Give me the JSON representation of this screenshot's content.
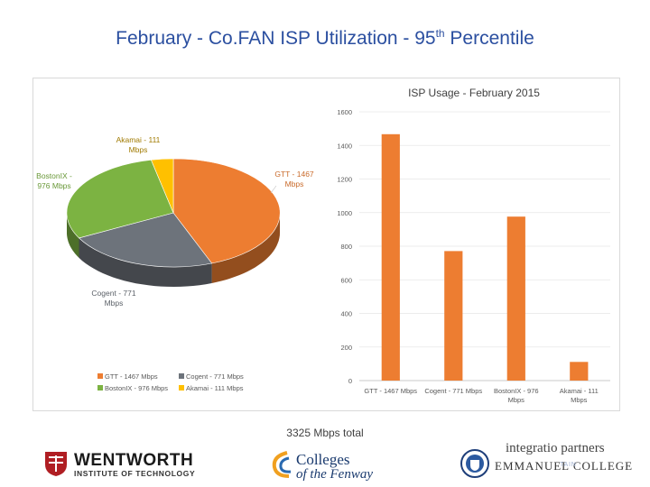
{
  "slide": {
    "title_main": "February - Co.FAN ISP Utilization - 95",
    "title_sup": "th",
    "title_end": " Percentile",
    "total": "3325 Mbps total"
  },
  "chart_data": [
    {
      "type": "pie",
      "title": "",
      "slices": [
        {
          "name": "GTT - 1467 Mbps",
          "value": 1467,
          "color": "#ed7d31",
          "label_lines": [
            "GTT - 1467",
            "Mbps"
          ]
        },
        {
          "name": "Cogent - 771 Mbps",
          "value": 771,
          "color": "#6d737b",
          "label_lines": [
            "Cogent - 771",
            "Mbps"
          ]
        },
        {
          "name": "BostonIX - 976 Mbps",
          "value": 976,
          "color": "#7cb342",
          "label_lines": [
            "BostonIX -",
            "976 Mbps"
          ]
        },
        {
          "name": "Akamai - 111 Mbps",
          "value": 111,
          "color": "#ffc000",
          "label_lines": [
            "Akamai - 111",
            "Mbps"
          ]
        }
      ],
      "legend": [
        "GTT - 1467 Mbps",
        "Cogent - 771 Mbps",
        "BostonIX - 976 Mbps",
        "Akamai - 111 Mbps"
      ],
      "legend_placement": "bottom-left"
    },
    {
      "type": "bar",
      "title": "ISP Usage - February 2015",
      "categories": [
        "GTT - 1467 Mbps",
        "Cogent - 771 Mbps",
        "BostonIX - 976 Mbps",
        "Akamai - 111 Mbps"
      ],
      "category_lines": [
        [
          "GTT - 1467 Mbps"
        ],
        [
          "Cogent - 771 Mbps"
        ],
        [
          "BostonIX - 976",
          "Mbps"
        ],
        [
          "Akamai - 111",
          "Mbps"
        ]
      ],
      "values": [
        1467,
        771,
        976,
        111
      ],
      "color": "#ed7d31",
      "ylim": [
        0,
        1600
      ],
      "yticks": [
        0,
        200,
        400,
        600,
        800,
        1000,
        1200,
        1400,
        1600
      ],
      "grid": true,
      "xlabel": "",
      "ylabel": ""
    }
  ],
  "logos": {
    "wentworth_name": "WENTWORTH",
    "wentworth_sub": "INSTITUTE OF TECHNOLOGY",
    "colleges_line1": "Colleges",
    "colleges_line2": "of the Fenway",
    "integration": "integratio partners",
    "emmanuel": "EMMANUEL COLLEGE",
    "emmanuel_tail": "TAIN"
  }
}
